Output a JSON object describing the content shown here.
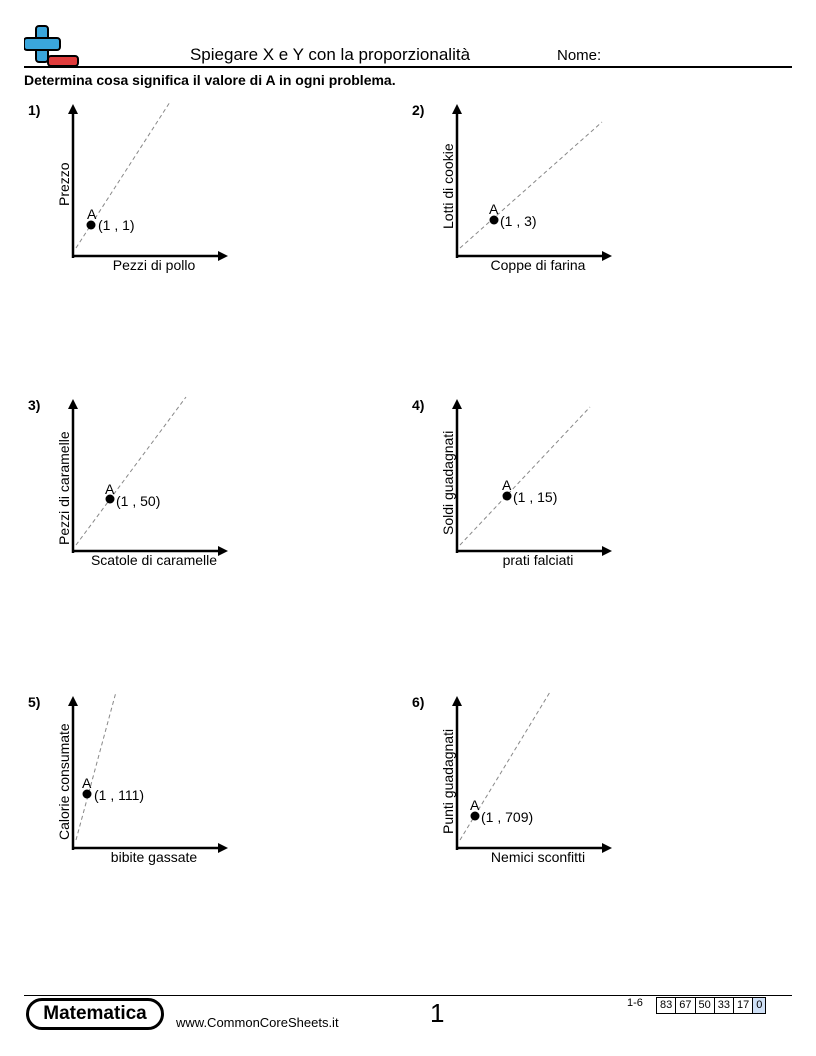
{
  "header": {
    "title": "Spiegare X e Y con la proporzionalità",
    "name_label": "Nome:",
    "instructions": "Determina cosa significa il valore di A in ogni problema."
  },
  "problems": [
    {
      "number": "1)",
      "y_label": "Prezzo",
      "x_label": "Pezzi di pollo",
      "point_label": "A",
      "point_text": "(1 , 1)",
      "point": {
        "x": 1,
        "y": 1
      }
    },
    {
      "number": "2)",
      "y_label": "Lotti di cookie",
      "x_label": "Coppe di farina",
      "point_label": "A",
      "point_text": "(1 , 3)",
      "point": {
        "x": 1,
        "y": 3
      }
    },
    {
      "number": "3)",
      "y_label": "Pezzi di caramelle",
      "x_label": "Scatole di caramelle",
      "point_label": "A",
      "point_text": "(1 , 50)",
      "point": {
        "x": 1,
        "y": 50
      }
    },
    {
      "number": "4)",
      "y_label": "Soldi guadagnati",
      "x_label": "prati falciati",
      "point_label": "A",
      "point_text": "(1 , 15)",
      "point": {
        "x": 1,
        "y": 15
      }
    },
    {
      "number": "5)",
      "y_label": "Calorie consumate",
      "x_label": "bibite gassate",
      "point_label": "A",
      "point_text": "(1 , 111)",
      "point": {
        "x": 1,
        "y": 111
      }
    },
    {
      "number": "6)",
      "y_label": "Punti guadagnati",
      "x_label": "Nemici sconfitti",
      "point_label": "A",
      "point_text": "(1 , 709)",
      "point": {
        "x": 1,
        "y": 709
      }
    }
  ],
  "footer": {
    "brand": "Matematica",
    "site": "www.CommonCoreSheets.it",
    "page_number": "1",
    "range": "1-6",
    "scores": [
      "83",
      "67",
      "50",
      "33",
      "17",
      "0"
    ]
  },
  "colors": {
    "logo_blue": "#3aa6dc",
    "logo_red": "#e03c3c",
    "dashed_line": "#888888",
    "score_highlight": "#cfe0f6"
  }
}
